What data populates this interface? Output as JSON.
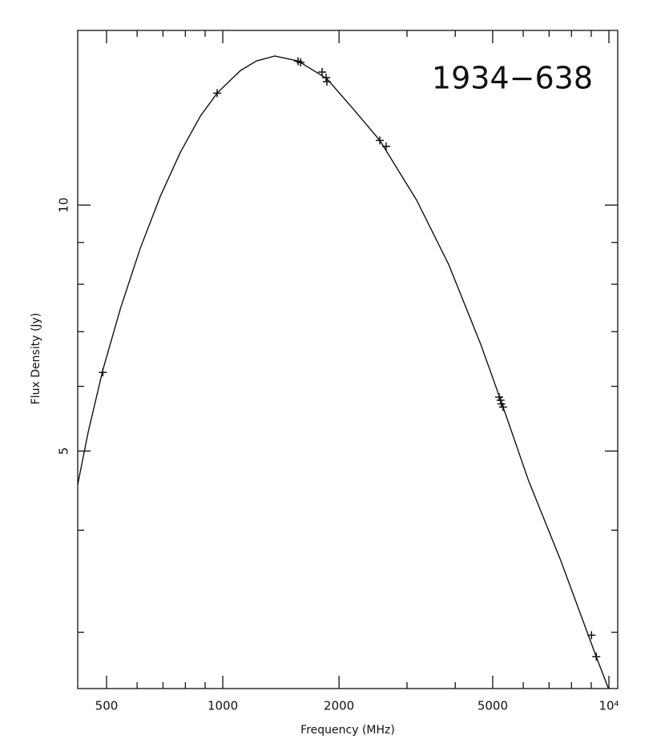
{
  "chart_data": {
    "type": "scatter",
    "title": "1934−638",
    "x_label": "Frequency (MHz)",
    "y_label": "Flux Density (Jy)",
    "x_log": true,
    "y_log": true,
    "xlim": [
      421,
      10540
    ],
    "ylim": [
      2.56,
      16.36
    ],
    "xticks": [
      500,
      1000,
      2000,
      5000,
      {
        "value": 10000,
        "label": "10⁴"
      }
    ],
    "yticks": [
      5,
      10
    ],
    "xminorticks": [
      600,
      700,
      800,
      900,
      3000,
      4000,
      6000,
      7000,
      8000,
      9000
    ],
    "yminorticks": [
      3,
      4,
      6,
      7,
      8,
      9
    ],
    "color": "#111111",
    "points": {
      "x": [
        489,
        967,
        1567,
        1590,
        1808,
        1852,
        1860,
        2551,
        2649,
        5196,
        5242,
        5267,
        5319,
        9015,
        9275
      ],
      "y": [
        6.24,
        13.71,
        15.0,
        14.95,
        14.55,
        14.32,
        14.16,
        12.0,
        11.8,
        5.82,
        5.77,
        5.71,
        5.66,
        2.975,
        2.8
      ]
    },
    "fit_curve": {
      "x": [
        421,
        448,
        489,
        543,
        611,
        689,
        776,
        875,
        967,
        1111,
        1222,
        1364,
        1567,
        1860,
        2168,
        2551,
        3177,
        3846,
        4659,
        5267,
        6194,
        7508,
        9275,
        9970
      ],
      "y": [
        4.55,
        5.27,
        6.28,
        7.47,
        8.85,
        10.25,
        11.6,
        12.85,
        13.71,
        14.61,
        15.01,
        15.22,
        15.01,
        14.28,
        13.14,
        12.0,
        10.14,
        8.46,
        6.75,
        5.74,
        4.6,
        3.67,
        2.8,
        2.56
      ]
    }
  }
}
